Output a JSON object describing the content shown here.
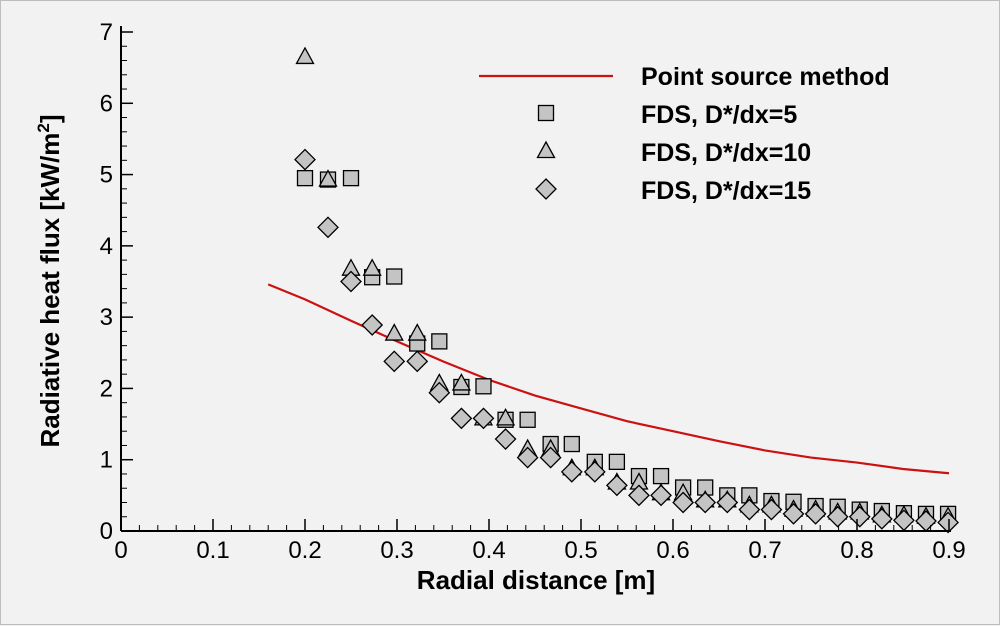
{
  "chart_data": {
    "type": "scatter",
    "xlabel": "Radial distance [m]",
    "ylabel": {
      "main": "Radiative heat flux [kW/m",
      "sup": "2",
      "end": "]"
    },
    "xlim": [
      0,
      0.9
    ],
    "ylim": [
      0,
      7
    ],
    "xticks": [
      "0",
      "0.1",
      "0.2",
      "0.3",
      "0.4",
      "0.5",
      "0.6",
      "0.7",
      "0.8",
      "0.9"
    ],
    "yticks": [
      "0",
      "1",
      "2",
      "3",
      "4",
      "5",
      "6",
      "7"
    ],
    "grid": false,
    "legend_position": "top-right",
    "colors": {
      "line": "#cc1111",
      "marker_fill": "#c4c4c4",
      "marker_stroke": "#000000"
    },
    "series": [
      {
        "name": "Point source method",
        "kind": "line",
        "x": [
          0.16,
          0.2,
          0.25,
          0.3,
          0.35,
          0.4,
          0.45,
          0.5,
          0.55,
          0.6,
          0.65,
          0.7,
          0.75,
          0.8,
          0.85,
          0.9
        ],
        "y": [
          3.46,
          3.25,
          2.95,
          2.66,
          2.38,
          2.12,
          1.9,
          1.72,
          1.54,
          1.4,
          1.26,
          1.13,
          1.03,
          0.96,
          0.87,
          0.81
        ]
      },
      {
        "name": "FDS, D*/dx=5",
        "kind": "marker",
        "marker": "square",
        "x": [
          0.2,
          0.225,
          0.25,
          0.273,
          0.297,
          0.322,
          0.346,
          0.37,
          0.394,
          0.418,
          0.442,
          0.467,
          0.49,
          0.515,
          0.539,
          0.563,
          0.587,
          0.611,
          0.635,
          0.659,
          0.683,
          0.707,
          0.731,
          0.755,
          0.779,
          0.803,
          0.827,
          0.851,
          0.875,
          0.899
        ],
        "y": [
          4.95,
          4.93,
          4.95,
          3.56,
          3.57,
          2.63,
          2.66,
          2.02,
          2.03,
          1.56,
          1.56,
          1.22,
          1.22,
          0.97,
          0.97,
          0.77,
          0.77,
          0.61,
          0.61,
          0.5,
          0.5,
          0.42,
          0.41,
          0.35,
          0.34,
          0.3,
          0.28,
          0.25,
          0.24,
          0.24
        ]
      },
      {
        "name": "FDS, D*/dx=10",
        "kind": "marker",
        "marker": "triangle",
        "x": [
          0.2,
          0.225,
          0.25,
          0.273,
          0.297,
          0.322,
          0.346,
          0.37,
          0.394,
          0.418,
          0.442,
          0.467,
          0.49,
          0.515,
          0.539,
          0.563,
          0.587,
          0.611,
          0.635,
          0.659,
          0.683,
          0.707,
          0.731,
          0.755,
          0.779,
          0.803,
          0.827,
          0.851,
          0.875,
          0.899
        ],
        "y": [
          6.65,
          4.93,
          3.68,
          3.68,
          2.77,
          2.77,
          2.07,
          2.07,
          1.58,
          1.58,
          1.15,
          1.15,
          0.88,
          0.88,
          0.68,
          0.68,
          0.53,
          0.53,
          0.43,
          0.43,
          0.36,
          0.36,
          0.3,
          0.3,
          0.26,
          0.26,
          0.22,
          0.22,
          0.2,
          0.2
        ]
      },
      {
        "name": "FDS, D*/dx=15",
        "kind": "marker",
        "marker": "diamond",
        "x": [
          0.2,
          0.225,
          0.25,
          0.273,
          0.297,
          0.322,
          0.346,
          0.37,
          0.394,
          0.418,
          0.442,
          0.467,
          0.49,
          0.515,
          0.539,
          0.563,
          0.587,
          0.611,
          0.635,
          0.659,
          0.683,
          0.707,
          0.731,
          0.755,
          0.779,
          0.803,
          0.827,
          0.851,
          0.875,
          0.899
        ],
        "y": [
          5.21,
          4.26,
          3.5,
          2.89,
          2.38,
          2.38,
          1.94,
          1.58,
          1.58,
          1.29,
          1.03,
          1.03,
          0.83,
          0.83,
          0.64,
          0.5,
          0.5,
          0.4,
          0.4,
          0.4,
          0.3,
          0.3,
          0.24,
          0.24,
          0.2,
          0.2,
          0.17,
          0.15,
          0.14,
          0.12
        ]
      }
    ]
  }
}
